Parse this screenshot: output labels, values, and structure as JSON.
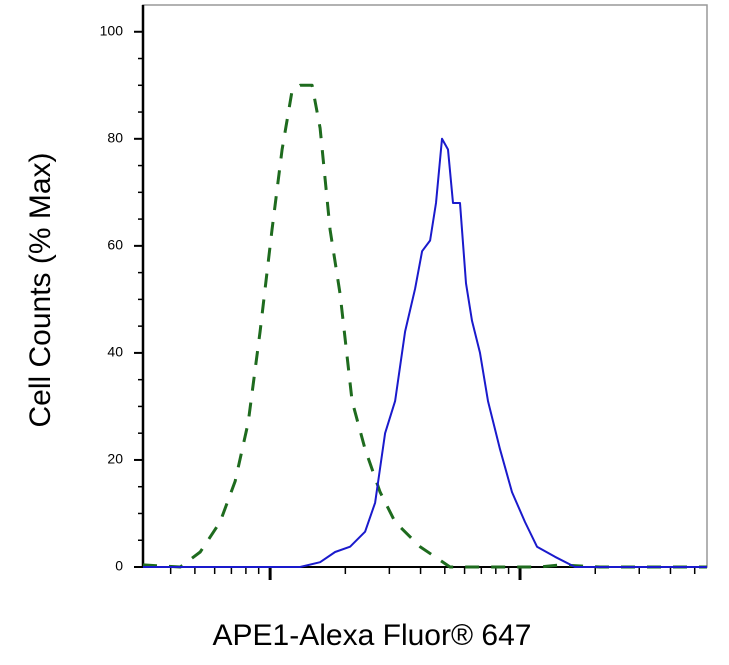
{
  "chart_data": {
    "type": "line",
    "x_label": "APE1-Alexa Fluor® 647",
    "y_label": "Cell Counts (% Max)",
    "x_log": true,
    "xlim": [
      310,
      56000
    ],
    "xticks": [
      1000,
      10000
    ],
    "x_minor_ticks": [
      400,
      500,
      600,
      700,
      800,
      900,
      2000,
      3000,
      4000,
      5000,
      6000,
      7000,
      8000,
      9000,
      20000,
      30000,
      40000,
      50000
    ],
    "ylim": [
      0,
      105
    ],
    "yticks": [
      0,
      20,
      40,
      60,
      80,
      100
    ],
    "y_minor_ticks": [
      5,
      10,
      15,
      25,
      30,
      35,
      45,
      50,
      55,
      65,
      70,
      75,
      85,
      90,
      95
    ],
    "series": [
      {
        "color": "#1e6b1e",
        "dash": true,
        "x": [
          310,
          437,
          525,
          631,
          724,
          817,
          912,
          1018,
          1117,
          1225,
          1318,
          1472,
          1585,
          1738,
          1905,
          2128,
          2399,
          2754,
          3162,
          3981,
          5248,
          8318,
          12023,
          14454,
          20893,
          56000
        ],
        "values": [
          0.4,
          0,
          2.8,
          8.4,
          16,
          27,
          44,
          63,
          78,
          89,
          90,
          90,
          82,
          63,
          51,
          31,
          22,
          14,
          8.4,
          3.8,
          0,
          0,
          0,
          0.4,
          0,
          0
        ]
      },
      {
        "color": "#1a1acc",
        "dash": false,
        "x": [
          310,
          832,
          1318,
          1585,
          1820,
          2089,
          2399,
          2630,
          2884,
          3162,
          3467,
          3802,
          4055,
          4365,
          4613,
          4875,
          5152,
          5395,
          5754,
          6081,
          6427,
          6918,
          7447,
          8318,
          9290,
          10471,
          11695,
          13804,
          16596,
          20893,
          56000
        ],
        "values": [
          0,
          0,
          0,
          0.9,
          2.8,
          3.8,
          6.6,
          12,
          25,
          31,
          44,
          52,
          59,
          61,
          68,
          80,
          78,
          68,
          68,
          53,
          46,
          40,
          31,
          22,
          14,
          8.4,
          3.8,
          1.9,
          0,
          0,
          0
        ]
      }
    ]
  }
}
